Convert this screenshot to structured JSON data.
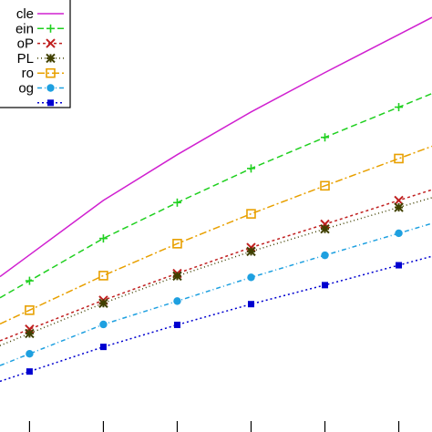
{
  "chart_data": {
    "type": "line",
    "title": "",
    "xlabel": "",
    "ylabel": "",
    "x": [
      1,
      2,
      3,
      4,
      5,
      6
    ],
    "xlim": [
      0.6,
      6.45
    ],
    "ylim": [
      0,
      10
    ],
    "grid": false,
    "legend_position": "top-left",
    "series": [
      {
        "name": "cle",
        "color": "#d020d0",
        "dash": "",
        "marker": "none",
        "values": [
          4.1,
          5.36,
          6.42,
          7.41,
          8.32,
          9.2
        ]
      },
      {
        "name": "ein",
        "color": "#20d020",
        "dash": "7,4",
        "marker": "plus",
        "values": [
          3.5,
          4.48,
          5.31,
          6.1,
          6.82,
          7.52
        ]
      },
      {
        "name": "oP",
        "color": "#c02020",
        "dash": "3,3",
        "marker": "x",
        "values": [
          2.38,
          3.05,
          3.67,
          4.27,
          4.81,
          5.36
        ]
      },
      {
        "name": "PL",
        "color": "#404000",
        "dash": "1,3",
        "marker": "star",
        "values": [
          2.28,
          2.98,
          3.61,
          4.18,
          4.7,
          5.2
        ]
      },
      {
        "name": "ro",
        "color": "#e8a000",
        "dash": "8,3,2,3",
        "marker": "square-open",
        "values": [
          2.82,
          3.62,
          4.36,
          5.05,
          5.7,
          6.33
        ]
      },
      {
        "name": "og",
        "color": "#1ea0e0",
        "dash": "5,3,1,3",
        "marker": "circle-filled",
        "values": [
          1.81,
          2.49,
          3.03,
          3.58,
          4.09,
          4.6
        ]
      },
      {
        "name": "",
        "color": "#0000d0",
        "dash": "2,3",
        "marker": "square-filled",
        "values": [
          1.4,
          1.97,
          2.48,
          2.96,
          3.4,
          3.86
        ]
      }
    ]
  }
}
